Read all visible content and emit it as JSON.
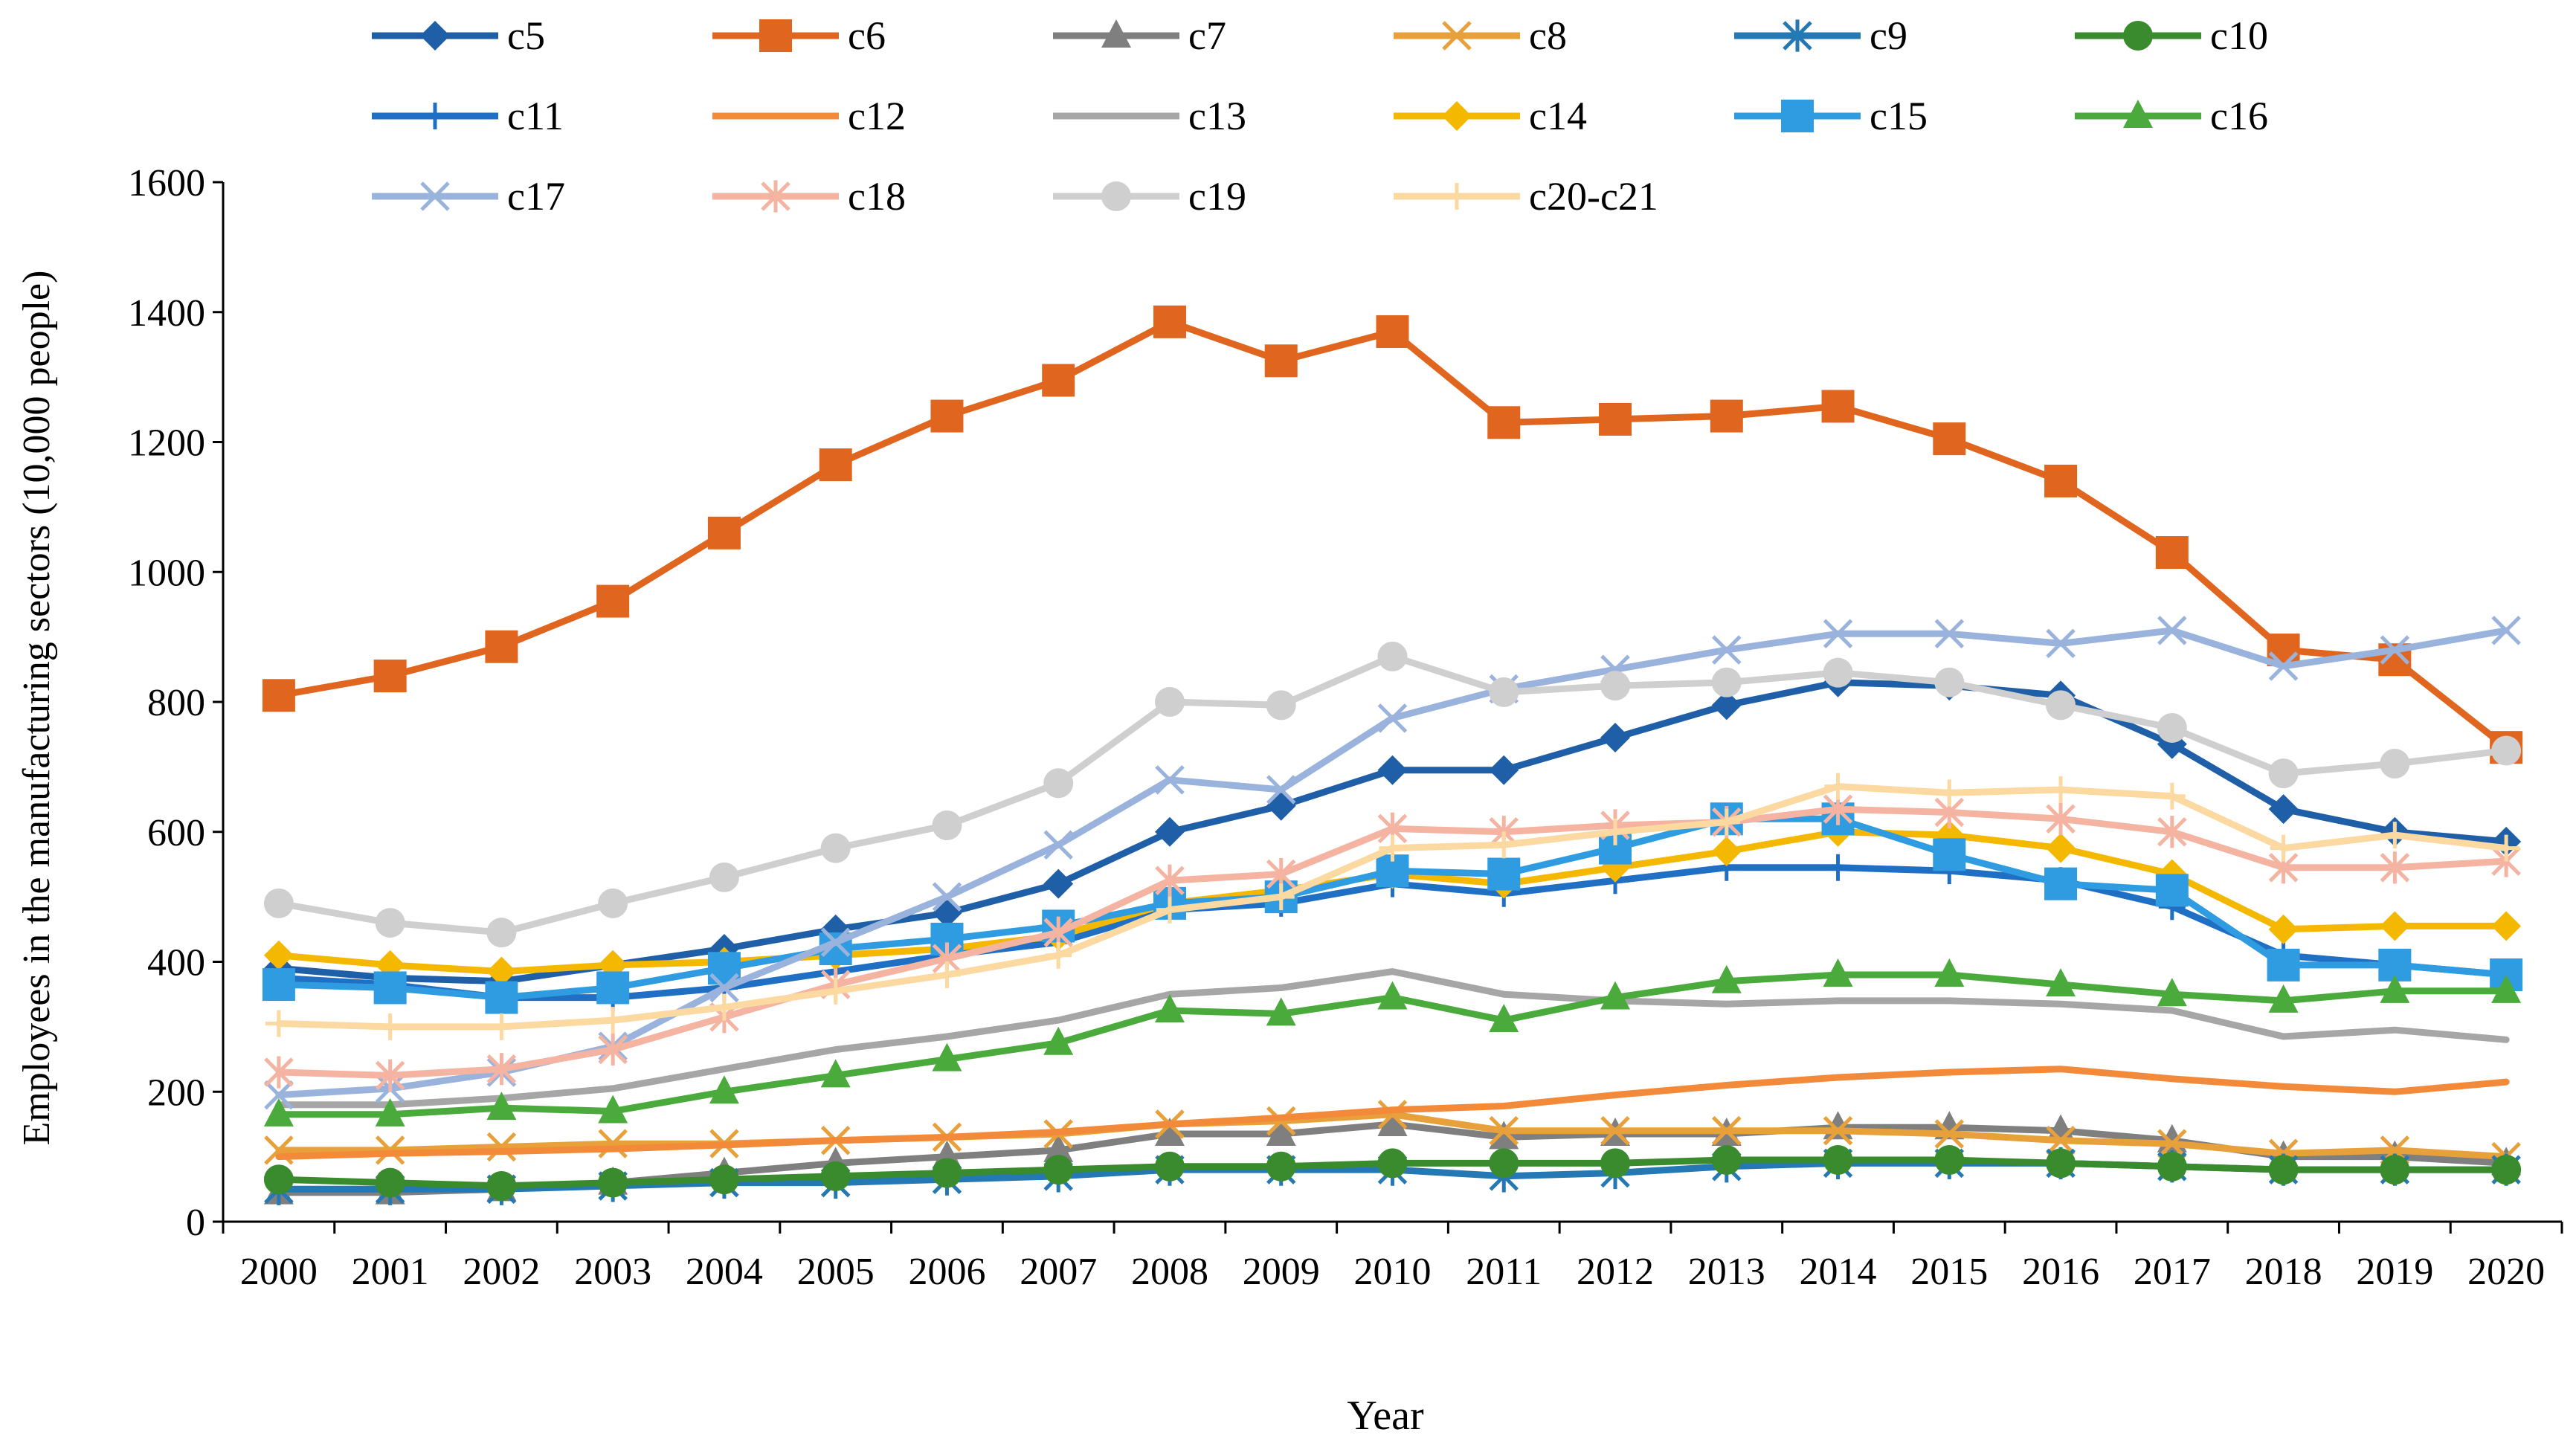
{
  "chart_data": {
    "type": "line",
    "title": "",
    "xlabel": "Year",
    "ylabel": "Employees in the manufacturing sectors (10,000 people)",
    "ylim": [
      0,
      1600
    ],
    "yticks": [
      0,
      200,
      400,
      600,
      800,
      1000,
      1200,
      1400,
      1600
    ],
    "categories": [
      "2000",
      "2001",
      "2002",
      "2003",
      "2004",
      "2005",
      "2006",
      "2007",
      "2008",
      "2009",
      "2010",
      "2011",
      "2012",
      "2013",
      "2014",
      "2015",
      "2016",
      "2017",
      "2018",
      "2019",
      "2020"
    ],
    "legend_position": "top",
    "series": [
      {
        "name": "c5",
        "color": "#1f5fa8",
        "marker": "diamond",
        "values": [
          390,
          375,
          370,
          395,
          420,
          450,
          475,
          520,
          600,
          640,
          695,
          695,
          745,
          795,
          830,
          825,
          810,
          735,
          635,
          600,
          585
        ]
      },
      {
        "name": "c6",
        "color": "#e0661f",
        "marker": "square",
        "values": [
          810,
          840,
          885,
          955,
          1060,
          1165,
          1240,
          1295,
          1385,
          1325,
          1370,
          1230,
          1235,
          1240,
          1255,
          1205,
          1140,
          1030,
          880,
          865,
          730
        ]
      },
      {
        "name": "c7",
        "color": "#7f7f7f",
        "marker": "triangle",
        "values": [
          45,
          45,
          50,
          60,
          75,
          90,
          100,
          110,
          135,
          135,
          150,
          130,
          135,
          135,
          145,
          145,
          140,
          125,
          100,
          100,
          90
        ]
      },
      {
        "name": "c8",
        "color": "#e8a13a",
        "marker": "x",
        "values": [
          110,
          110,
          115,
          120,
          120,
          125,
          130,
          135,
          150,
          155,
          165,
          140,
          140,
          140,
          140,
          135,
          125,
          120,
          105,
          110,
          100
        ]
      },
      {
        "name": "c9",
        "color": "#2478b4",
        "marker": "star",
        "values": [
          50,
          50,
          50,
          55,
          60,
          60,
          65,
          70,
          80,
          80,
          80,
          70,
          75,
          85,
          90,
          90,
          90,
          85,
          80,
          80,
          80
        ]
      },
      {
        "name": "c10",
        "color": "#3a8a2e",
        "marker": "circle",
        "values": [
          65,
          60,
          55,
          60,
          65,
          70,
          75,
          80,
          85,
          85,
          90,
          90,
          90,
          95,
          95,
          95,
          90,
          85,
          80,
          80,
          80
        ]
      },
      {
        "name": "c11",
        "color": "#1f6fc4",
        "marker": "plus",
        "values": [
          375,
          365,
          345,
          345,
          360,
          385,
          410,
          430,
          480,
          490,
          520,
          505,
          525,
          545,
          545,
          540,
          525,
          485,
          410,
          395,
          380
        ]
      },
      {
        "name": "c12",
        "color": "#f28a3a",
        "marker": "none",
        "values": [
          100,
          105,
          108,
          112,
          118,
          125,
          130,
          138,
          150,
          160,
          172,
          178,
          195,
          210,
          222,
          230,
          235,
          220,
          208,
          200,
          215
        ]
      },
      {
        "name": "c13",
        "color": "#a6a6a6",
        "marker": "none",
        "values": [
          180,
          180,
          190,
          205,
          235,
          265,
          285,
          310,
          350,
          360,
          385,
          350,
          340,
          335,
          340,
          340,
          335,
          325,
          285,
          295,
          280
        ]
      },
      {
        "name": "c14",
        "color": "#f5b800",
        "marker": "diamond",
        "values": [
          410,
          395,
          385,
          395,
          400,
          410,
          420,
          440,
          490,
          510,
          535,
          520,
          545,
          570,
          600,
          595,
          575,
          535,
          450,
          455,
          455
        ]
      },
      {
        "name": "c15",
        "color": "#2f9be0",
        "marker": "square",
        "values": [
          365,
          360,
          345,
          360,
          390,
          420,
          435,
          455,
          490,
          500,
          540,
          535,
          575,
          620,
          620,
          565,
          520,
          510,
          395,
          395,
          380
        ]
      },
      {
        "name": "c16",
        "color": "#4aab3c",
        "marker": "triangle",
        "values": [
          165,
          165,
          175,
          170,
          200,
          225,
          250,
          275,
          325,
          320,
          345,
          310,
          345,
          370,
          380,
          380,
          365,
          350,
          340,
          355,
          355
        ]
      },
      {
        "name": "c17",
        "color": "#9ab3dc",
        "marker": "x",
        "values": [
          195,
          205,
          230,
          270,
          360,
          430,
          500,
          580,
          680,
          665,
          775,
          820,
          850,
          880,
          905,
          905,
          890,
          910,
          855,
          880,
          910
        ]
      },
      {
        "name": "c18",
        "color": "#f5b3a2",
        "marker": "star",
        "values": [
          230,
          225,
          235,
          265,
          315,
          365,
          405,
          445,
          525,
          535,
          605,
          600,
          610,
          615,
          635,
          630,
          620,
          600,
          545,
          545,
          555
        ]
      },
      {
        "name": "c19",
        "color": "#cfcfcf",
        "marker": "circle",
        "values": [
          490,
          460,
          445,
          490,
          530,
          575,
          610,
          675,
          800,
          795,
          870,
          815,
          825,
          830,
          845,
          830,
          795,
          760,
          690,
          705,
          725
        ]
      },
      {
        "name": "c20-c21",
        "color": "#fcd9a0",
        "marker": "plus",
        "values": [
          305,
          300,
          300,
          310,
          330,
          355,
          380,
          410,
          480,
          500,
          575,
          580,
          600,
          615,
          670,
          660,
          665,
          655,
          575,
          595,
          575
        ]
      }
    ]
  }
}
